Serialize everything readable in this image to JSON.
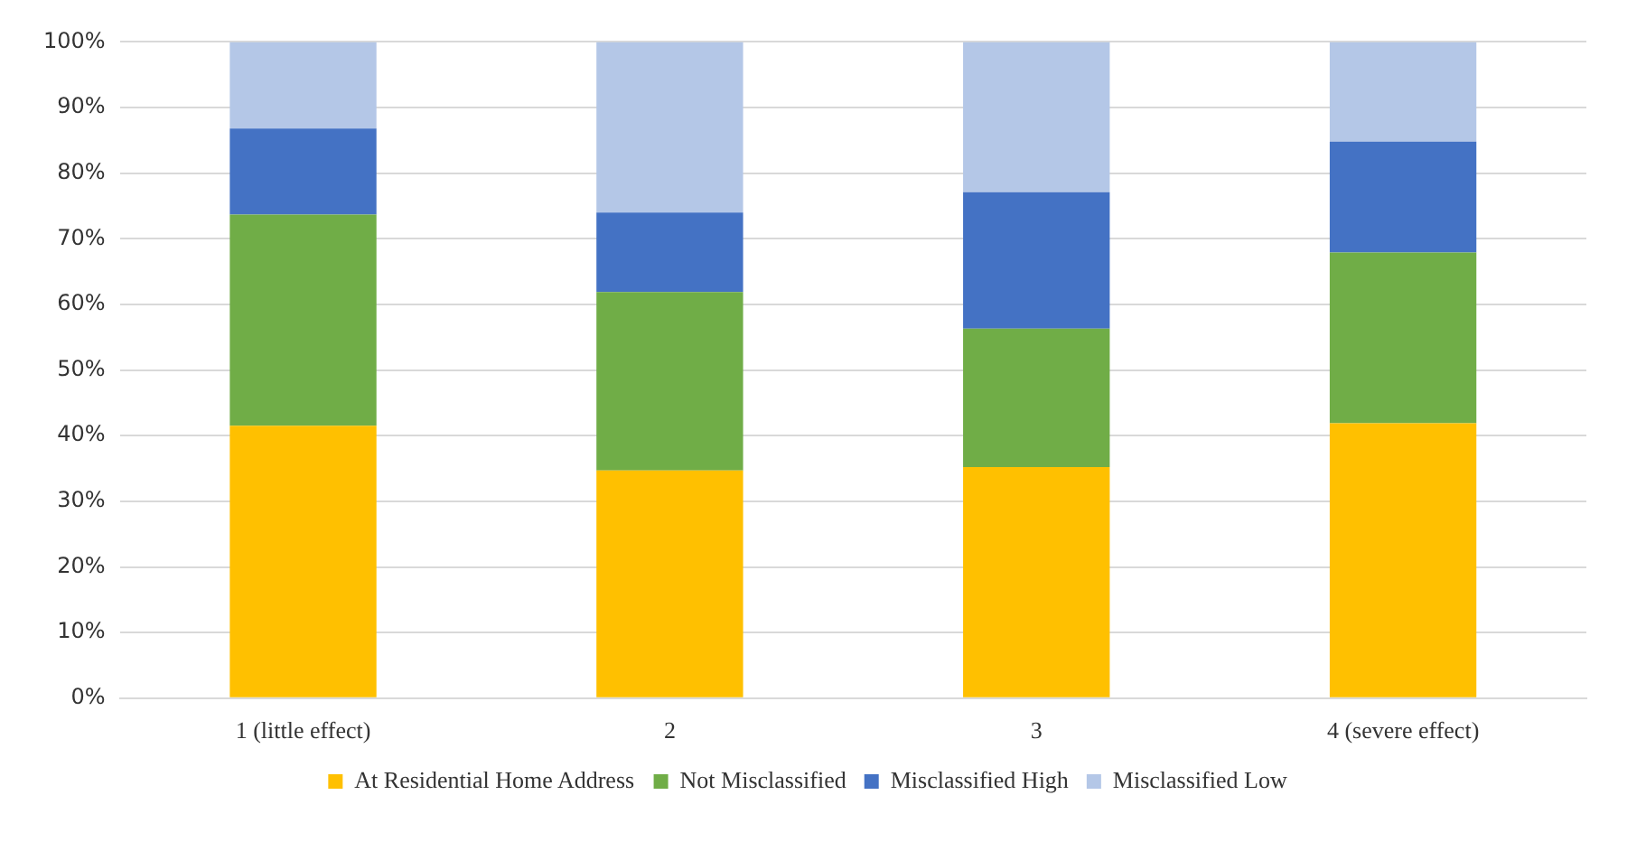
{
  "chart_data": {
    "type": "bar",
    "stacked": true,
    "categories": [
      "1 (little effect)",
      "2",
      "3",
      "4 (severe effect)"
    ],
    "series": [
      {
        "name": "At Residential Home Address",
        "color": "#ffc000",
        "values": [
          41.5,
          34.7,
          35.2,
          41.9
        ]
      },
      {
        "name": "Not Misclassified",
        "color": "#70ad47",
        "values": [
          32.2,
          27.2,
          21.1,
          26.0
        ]
      },
      {
        "name": "Misclassified High",
        "color": "#4472c4",
        "values": [
          13.1,
          12.1,
          20.8,
          16.9
        ]
      },
      {
        "name": "Misclassified Low",
        "color": "#b4c7e7",
        "values": [
          13.2,
          26.0,
          22.9,
          15.2
        ]
      }
    ],
    "ylim": [
      0,
      100
    ],
    "yticks": [
      {
        "value": 0,
        "label": "0%"
      },
      {
        "value": 10,
        "label": "10%"
      },
      {
        "value": 20,
        "label": "20%"
      },
      {
        "value": 30,
        "label": "30%"
      },
      {
        "value": 40,
        "label": "40%"
      },
      {
        "value": 50,
        "label": "50%"
      },
      {
        "value": 60,
        "label": "60%"
      },
      {
        "value": 70,
        "label": "70%"
      },
      {
        "value": 80,
        "label": "80%"
      },
      {
        "value": 90,
        "label": "90%"
      },
      {
        "value": 100,
        "label": "100%"
      }
    ],
    "grid": "y",
    "legend": "bottom"
  }
}
